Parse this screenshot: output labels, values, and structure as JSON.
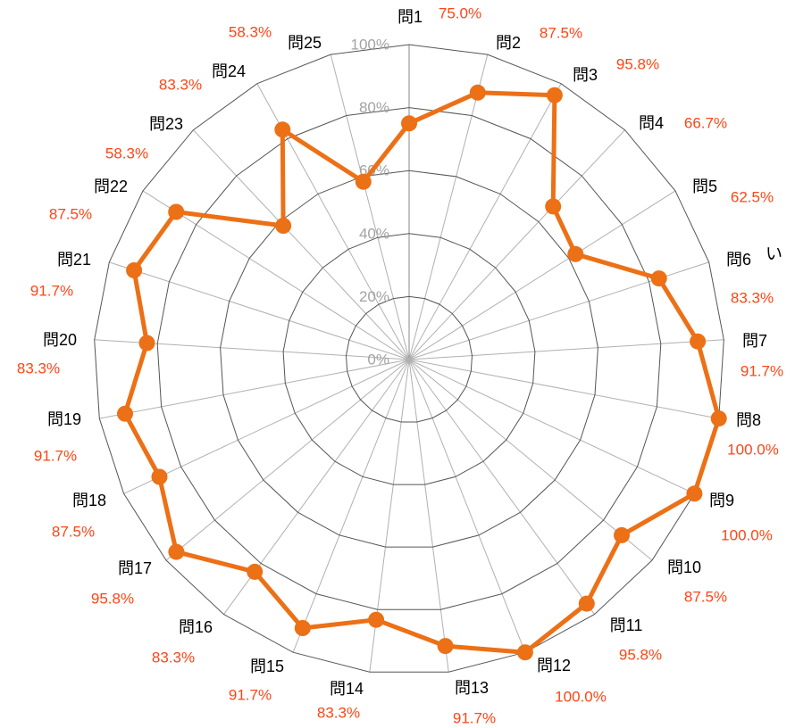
{
  "chart_data": {
    "type": "radar",
    "categories": [
      "問1",
      "問2",
      "問3",
      "問4",
      "問5",
      "問6",
      "問7",
      "問8",
      "問9",
      "問10",
      "問11",
      "問12",
      "問13",
      "問14",
      "問15",
      "問16",
      "問17",
      "問18",
      "問19",
      "問20",
      "問21",
      "問22",
      "問23",
      "問24",
      "問25"
    ],
    "series": [
      {
        "values": [
          75.0,
          87.5,
          95.8,
          66.7,
          62.5,
          83.3,
          91.7,
          100.0,
          100.0,
          87.5,
          95.8,
          100.0,
          91.7,
          83.3,
          91.7,
          83.3,
          95.8,
          87.5,
          91.7,
          83.3,
          91.7,
          87.5,
          58.3,
          83.3,
          58.3
        ],
        "data_labels": [
          "75.0%",
          "87.5%",
          "95.8%",
          "66.7%",
          "62.5%",
          "83.3%",
          "91.7%",
          "100.0%",
          "100.0%",
          "87.5%",
          "95.8%",
          "100.0%",
          "91.7%",
          "83.3%",
          "91.7%",
          "83.3%",
          "95.8%",
          "87.5%",
          "91.7%",
          "83.3%",
          "91.7%",
          "87.5%",
          "58.3%",
          "83.3%",
          "58.3%"
        ]
      }
    ],
    "rlim": [
      0,
      100
    ],
    "ticks": [
      0,
      20,
      40,
      60,
      80,
      100
    ],
    "tick_labels": [
      "0%",
      "20%",
      "40%",
      "60%",
      "80%",
      "100%"
    ],
    "grid": true,
    "legend": "none",
    "annotation": "い",
    "colors": {
      "line": "#ec7016",
      "marker": "#ec7016",
      "data_label": "#ff4515",
      "tick_label": "#a3a3a3",
      "ring": "#555555",
      "spoke": "#b0b0b0",
      "main_spoke": "#8a8a8a"
    }
  }
}
